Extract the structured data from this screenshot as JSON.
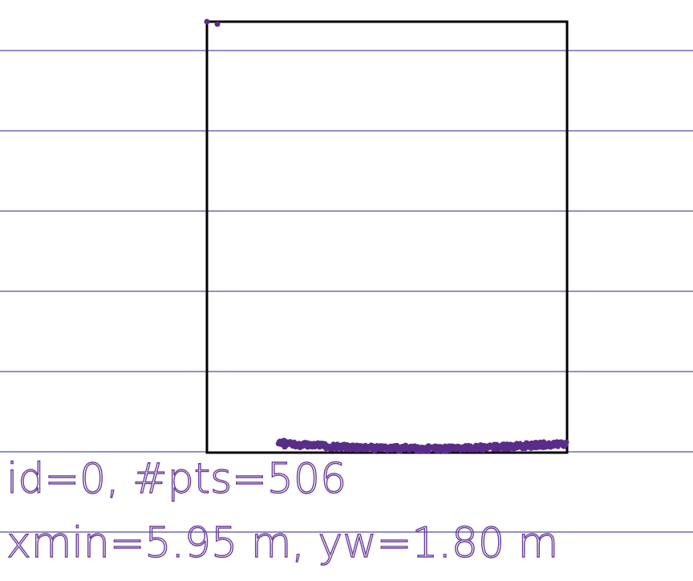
{
  "colors": {
    "background": "#ffffff",
    "grid_line": "#2a1f8f",
    "box_outline": "#000000",
    "points": "#5b2d8a",
    "label_text": "#6a3d9a"
  },
  "labels": {
    "line1": "id=0, #pts=506",
    "line2": "xmin=5.95 m, yw=1.80 m"
  },
  "object": {
    "id": 0,
    "point_count": 506,
    "xmin_m": 5.95,
    "width_y_m": 1.8
  }
}
